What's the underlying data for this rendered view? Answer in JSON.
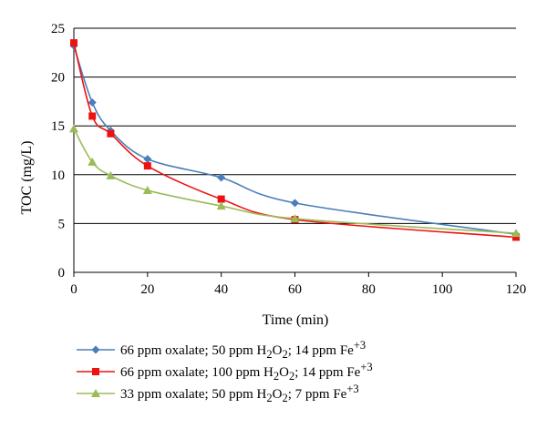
{
  "chart_data": {
    "type": "line",
    "title": "",
    "xlabel": "Time (min)",
    "ylabel": "TOC (mg/L)",
    "xlim": [
      0,
      120
    ],
    "ylim": [
      0,
      25
    ],
    "xticks": [
      0,
      20,
      40,
      60,
      80,
      100,
      120
    ],
    "yticks": [
      0,
      5,
      10,
      15,
      20,
      25
    ],
    "grid": "horizontal",
    "legend_position": "bottom",
    "series": [
      {
        "name": "66 ppm oxalate; 50 ppm H2O2; 14 ppm Fe+3",
        "color": "#4a7ebb",
        "marker": "diamond",
        "x": [
          0,
          5,
          10,
          20,
          40,
          60,
          120
        ],
        "y": [
          23.2,
          17.4,
          14.5,
          11.6,
          9.7,
          7.1,
          3.9
        ]
      },
      {
        "name": "66 ppm oxalate; 100 ppm H2O2; 14 ppm Fe+3",
        "color": "#ee1111",
        "marker": "square",
        "x": [
          0,
          5,
          10,
          20,
          40,
          60,
          120
        ],
        "y": [
          23.5,
          16.0,
          14.2,
          10.9,
          7.5,
          5.4,
          3.6
        ]
      },
      {
        "name": "33 ppm oxalate; 50 ppm H2O2; 7 ppm Fe+3",
        "color": "#9bbb59",
        "marker": "triangle",
        "x": [
          0,
          5,
          10,
          20,
          40,
          60,
          120
        ],
        "y": [
          14.7,
          11.3,
          9.9,
          8.4,
          6.8,
          5.5,
          4.0
        ]
      }
    ]
  },
  "legend": [
    {
      "pre": "66 ppm oxalate; 50 ppm H",
      "sub": "2",
      "mid": "O",
      "sub2": "2",
      "post": "; 14 ppm Fe",
      "sup": "+3"
    },
    {
      "pre": "66 ppm oxalate; 100 ppm H",
      "sub": "2",
      "mid": "O",
      "sub2": "2",
      "post": "; 14 ppm Fe",
      "sup": "+3"
    },
    {
      "pre": "33 ppm oxalate; 50 ppm H",
      "sub": "2",
      "mid": "O",
      "sub2": "2",
      "post": "; 7 ppm Fe",
      "sup": "+3"
    }
  ]
}
